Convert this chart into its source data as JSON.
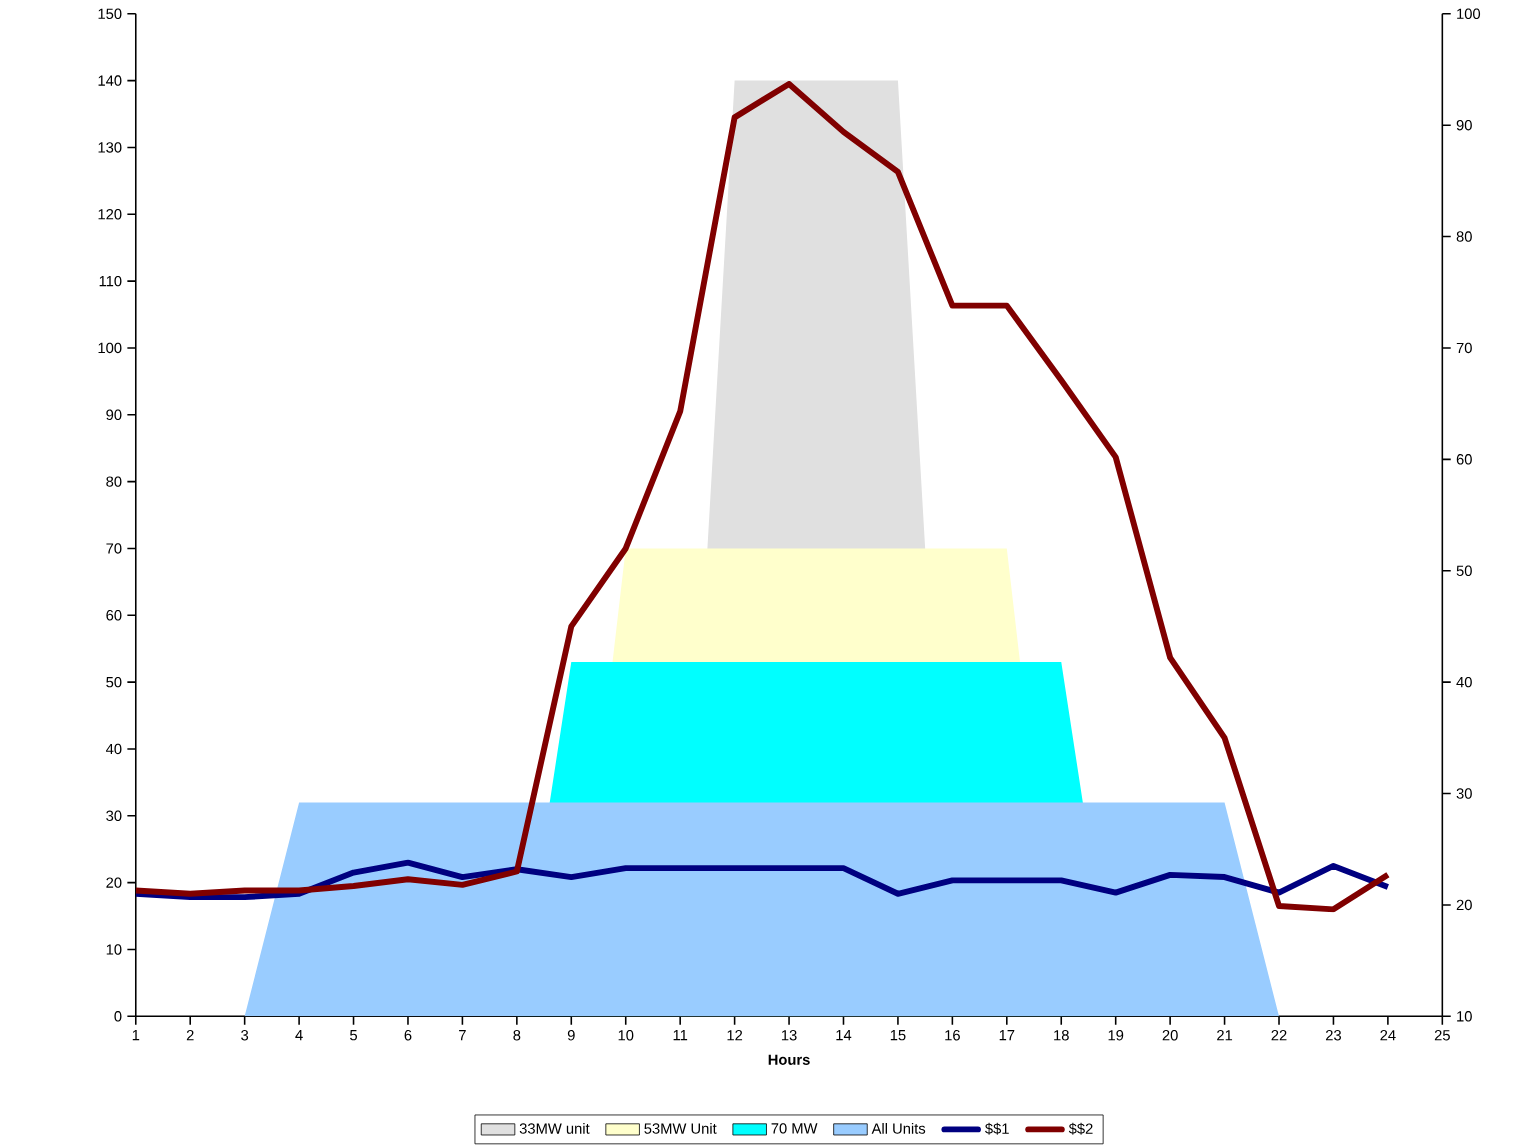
{
  "chart_data": {
    "type": "area",
    "xlabel": "Hours",
    "x": [
      1,
      2,
      3,
      4,
      5,
      6,
      7,
      8,
      9,
      10,
      11,
      12,
      13,
      14,
      15,
      16,
      17,
      18,
      19,
      20,
      21,
      22,
      23,
      24
    ],
    "xlim": [
      1,
      25
    ],
    "xticks": [
      1,
      2,
      3,
      4,
      5,
      6,
      7,
      8,
      9,
      10,
      11,
      12,
      13,
      14,
      15,
      16,
      17,
      18,
      19,
      20,
      21,
      22,
      23,
      24,
      25
    ],
    "ylim": [
      0,
      150
    ],
    "yticks": [
      0,
      10,
      20,
      30,
      40,
      50,
      60,
      70,
      80,
      90,
      100,
      110,
      120,
      130,
      140,
      150
    ],
    "y2lim": [
      10,
      100
    ],
    "y2ticks": [
      10,
      20,
      30,
      40,
      50,
      60,
      70,
      80,
      90,
      100
    ],
    "legend": "bottom",
    "grid": false,
    "series": [
      {
        "name": "33MW unit",
        "color": "#e0e0e0",
        "values": [
          0,
          0,
          0,
          0,
          0,
          0,
          0,
          0,
          0,
          0,
          0,
          140,
          140,
          140,
          140,
          0,
          0,
          0,
          0,
          0,
          0,
          0,
          0,
          0
        ]
      },
      {
        "name": "53MW Unit",
        "color": "#ffffcc",
        "values": [
          0,
          0,
          0,
          0,
          0,
          0,
          0,
          0,
          0,
          70,
          70,
          70,
          70,
          70,
          70,
          70,
          70,
          0,
          0,
          0,
          0,
          0,
          0,
          0
        ]
      },
      {
        "name": "70 MW",
        "color": "#00ffff",
        "values": [
          0,
          0,
          0,
          0,
          0,
          0,
          0,
          0,
          53,
          53,
          53,
          53,
          53,
          53,
          53,
          53,
          53,
          53,
          0,
          0,
          0,
          0,
          0,
          0
        ]
      },
      {
        "name": "All Units",
        "color": "#99ccff",
        "values": [
          0,
          0,
          0,
          32,
          32,
          32,
          32,
          32,
          32,
          32,
          32,
          32,
          32,
          32,
          32,
          32,
          32,
          32,
          32,
          32,
          32,
          0,
          0,
          0
        ]
      },
      {
        "name": "$$1",
        "type": "line",
        "axis": "y2",
        "color": "#000080",
        "values": [
          21,
          20.7,
          20.7,
          21,
          22.9,
          23.8,
          22.5,
          23.2,
          22.5,
          23.3,
          23.3,
          23.3,
          23.3,
          23.3,
          21,
          22.2,
          22.2,
          22.2,
          21.1,
          22.7,
          22.5,
          21.1,
          23.5,
          21.6
        ]
      },
      {
        "name": "$$2",
        "type": "line",
        "axis": "y2",
        "color": "#800000",
        "values": [
          21.3,
          21,
          21.3,
          21.3,
          21.7,
          22.3,
          21.8,
          23,
          45,
          52,
          64.3,
          90.7,
          93.7,
          89.4,
          85.8,
          73.8,
          73.8,
          67.1,
          60.2,
          42.2,
          35,
          19.9,
          19.6,
          22.7
        ]
      }
    ]
  }
}
